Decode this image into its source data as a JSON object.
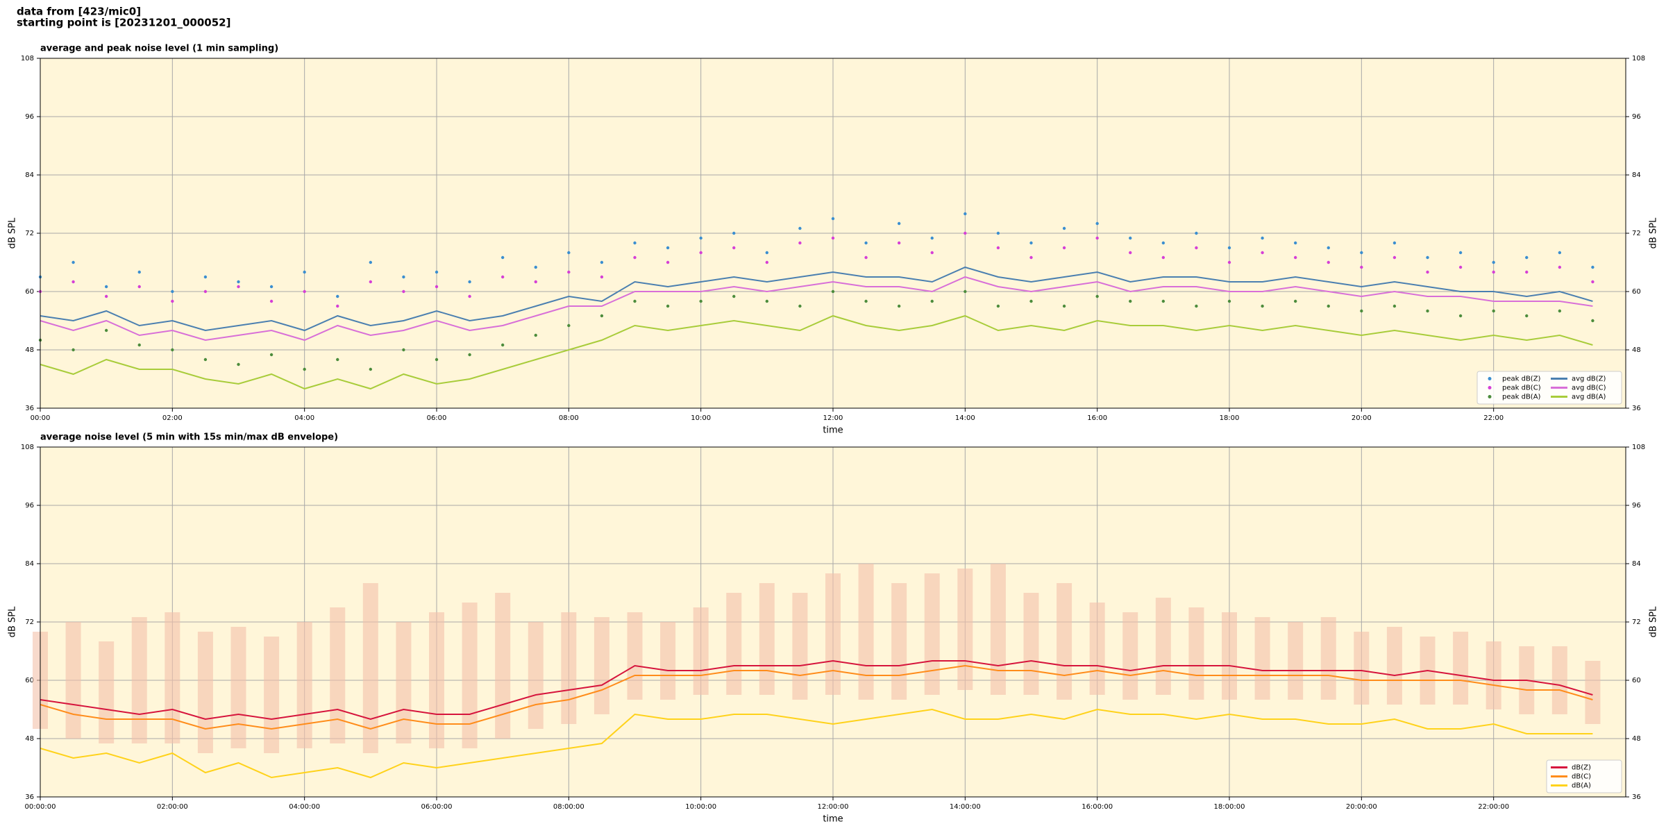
{
  "header": {
    "lines": [
      "data from [423/mic0]",
      "starting point is [20231201_000052]"
    ]
  },
  "chart_data": [
    {
      "type": "line",
      "title": "average and peak noise level (1 min sampling)",
      "xlabel": "time",
      "ylabel": "dB SPL",
      "y2label": "dB SPL",
      "background": "#fff6d9",
      "grid": true,
      "legend_loc": "lower right",
      "x": [
        0,
        0.5,
        1,
        1.5,
        2,
        2.5,
        3,
        3.5,
        4,
        4.5,
        5,
        5.5,
        6,
        6.5,
        7,
        7.5,
        8,
        8.5,
        9,
        9.5,
        10,
        10.5,
        11,
        11.5,
        12,
        12.5,
        13,
        13.5,
        14,
        14.5,
        15,
        15.5,
        16,
        16.5,
        17,
        17.5,
        18,
        18.5,
        19,
        19.5,
        20,
        20.5,
        21,
        21.5,
        22,
        22.5,
        23,
        23.5
      ],
      "xlim": [
        0,
        24
      ],
      "xticks": [
        {
          "value": 0,
          "label": "00:00"
        },
        {
          "value": 2,
          "label": "02:00"
        },
        {
          "value": 4,
          "label": "04:00"
        },
        {
          "value": 6,
          "label": "06:00"
        },
        {
          "value": 8,
          "label": "08:00"
        },
        {
          "value": 10,
          "label": "10:00"
        },
        {
          "value": 12,
          "label": "12:00"
        },
        {
          "value": 14,
          "label": "14:00"
        },
        {
          "value": 16,
          "label": "16:00"
        },
        {
          "value": 18,
          "label": "18:00"
        },
        {
          "value": 20,
          "label": "20:00"
        },
        {
          "value": 22,
          "label": "22:00"
        }
      ],
      "ylim": [
        36,
        108
      ],
      "yticks": [
        36,
        48,
        60,
        72,
        84,
        96,
        108
      ],
      "series": [
        {
          "name": "peak dB(Z)",
          "type": "scatter",
          "color": "#3a8ed0",
          "values": [
            63,
            66,
            61,
            64,
            60,
            63,
            62,
            61,
            64,
            59,
            66,
            63,
            64,
            62,
            67,
            65,
            68,
            66,
            70,
            69,
            71,
            72,
            68,
            73,
            75,
            70,
            74,
            71,
            76,
            72,
            70,
            73,
            74,
            71,
            70,
            72,
            69,
            71,
            70,
            69,
            68,
            70,
            67,
            68,
            66,
            67,
            68,
            65
          ]
        },
        {
          "name": "peak dB(C)",
          "type": "scatter",
          "color": "#d63fd6",
          "values": [
            60,
            62,
            59,
            61,
            58,
            60,
            61,
            58,
            60,
            57,
            62,
            60,
            61,
            59,
            63,
            62,
            64,
            63,
            67,
            66,
            68,
            69,
            66,
            70,
            71,
            67,
            70,
            68,
            72,
            69,
            67,
            69,
            71,
            68,
            67,
            69,
            66,
            68,
            67,
            66,
            65,
            67,
            64,
            65,
            64,
            64,
            65,
            62
          ]
        },
        {
          "name": "peak dB(A)",
          "type": "scatter",
          "color": "#4c8c3c",
          "values": [
            50,
            48,
            52,
            49,
            48,
            46,
            45,
            47,
            44,
            46,
            44,
            48,
            46,
            47,
            49,
            51,
            53,
            55,
            58,
            57,
            58,
            59,
            58,
            57,
            60,
            58,
            57,
            58,
            60,
            57,
            58,
            57,
            59,
            58,
            58,
            57,
            58,
            57,
            58,
            57,
            56,
            57,
            56,
            55,
            56,
            55,
            56,
            54
          ]
        },
        {
          "name": "avg dB(Z)",
          "type": "line",
          "color": "#4a7fb0",
          "values": [
            55,
            54,
            56,
            53,
            54,
            52,
            53,
            54,
            52,
            55,
            53,
            54,
            56,
            54,
            55,
            57,
            59,
            58,
            62,
            61,
            62,
            63,
            62,
            63,
            64,
            63,
            63,
            62,
            65,
            63,
            62,
            63,
            64,
            62,
            63,
            63,
            62,
            62,
            63,
            62,
            61,
            62,
            61,
            60,
            60,
            59,
            60,
            58
          ]
        },
        {
          "name": "avg dB(C)",
          "type": "line",
          "color": "#d86fd8",
          "values": [
            54,
            52,
            54,
            51,
            52,
            50,
            51,
            52,
            50,
            53,
            51,
            52,
            54,
            52,
            53,
            55,
            57,
            57,
            60,
            60,
            60,
            61,
            60,
            61,
            62,
            61,
            61,
            60,
            63,
            61,
            60,
            61,
            62,
            60,
            61,
            61,
            60,
            60,
            61,
            60,
            59,
            60,
            59,
            59,
            58,
            58,
            58,
            57
          ]
        },
        {
          "name": "avg dB(A)",
          "type": "line",
          "color": "#a8cc3a",
          "values": [
            45,
            43,
            46,
            44,
            44,
            42,
            41,
            43,
            40,
            42,
            40,
            43,
            41,
            42,
            44,
            46,
            48,
            50,
            53,
            52,
            53,
            54,
            53,
            52,
            55,
            53,
            52,
            53,
            55,
            52,
            53,
            52,
            54,
            53,
            53,
            52,
            53,
            52,
            53,
            52,
            51,
            52,
            51,
            50,
            51,
            50,
            51,
            49
          ]
        }
      ]
    },
    {
      "type": "line",
      "title": "average noise level (5 min with 15s min/max dB envelope)",
      "xlabel": "time",
      "ylabel": "dB SPL",
      "y2label": "dB SPL",
      "background": "#fff6d9",
      "grid": true,
      "legend_loc": "lower right",
      "x": [
        0,
        0.5,
        1,
        1.5,
        2,
        2.5,
        3,
        3.5,
        4,
        4.5,
        5,
        5.5,
        6,
        6.5,
        7,
        7.5,
        8,
        8.5,
        9,
        9.5,
        10,
        10.5,
        11,
        11.5,
        12,
        12.5,
        13,
        13.5,
        14,
        14.5,
        15,
        15.5,
        16,
        16.5,
        17,
        17.5,
        18,
        18.5,
        19,
        19.5,
        20,
        20.5,
        21,
        21.5,
        22,
        22.5,
        23,
        23.5
      ],
      "xlim": [
        0,
        24
      ],
      "xticks": [
        {
          "value": 0,
          "label": "00:00:00"
        },
        {
          "value": 2,
          "label": "02:00:00"
        },
        {
          "value": 4,
          "label": "04:00:00"
        },
        {
          "value": 6,
          "label": "06:00:00"
        },
        {
          "value": 8,
          "label": "08:00:00"
        },
        {
          "value": 10,
          "label": "10:00:00"
        },
        {
          "value": 12,
          "label": "12:00:00"
        },
        {
          "value": 14,
          "label": "14:00:00"
        },
        {
          "value": 16,
          "label": "16:00:00"
        },
        {
          "value": 18,
          "label": "18:00:00"
        },
        {
          "value": 20,
          "label": "20:00:00"
        },
        {
          "value": 22,
          "label": "22:00:00"
        }
      ],
      "ylim": [
        36,
        108
      ],
      "yticks": [
        36,
        48,
        60,
        72,
        84,
        96,
        108
      ],
      "envelope": {
        "color": "#f4c2aa",
        "lower": [
          50,
          48,
          47,
          47,
          47,
          45,
          46,
          45,
          46,
          47,
          45,
          47,
          46,
          46,
          48,
          50,
          51,
          53,
          56,
          56,
          57,
          57,
          57,
          56,
          57,
          56,
          56,
          57,
          58,
          57,
          57,
          56,
          57,
          56,
          57,
          56,
          56,
          56,
          56,
          56,
          55,
          55,
          55,
          55,
          54,
          53,
          53,
          51
        ],
        "upper": [
          70,
          72,
          68,
          73,
          74,
          70,
          71,
          69,
          72,
          75,
          80,
          72,
          74,
          76,
          78,
          72,
          74,
          73,
          74,
          72,
          75,
          78,
          80,
          78,
          82,
          84,
          80,
          82,
          83,
          84,
          78,
          80,
          76,
          74,
          77,
          75,
          74,
          73,
          72,
          73,
          70,
          71,
          69,
          70,
          68,
          67,
          67,
          64
        ]
      },
      "series": [
        {
          "name": "dB(Z)",
          "type": "line",
          "color": "#d6143c",
          "values": [
            56,
            55,
            54,
            53,
            54,
            52,
            53,
            52,
            53,
            54,
            52,
            54,
            53,
            53,
            55,
            57,
            58,
            59,
            63,
            62,
            62,
            63,
            63,
            63,
            64,
            63,
            63,
            64,
            64,
            63,
            64,
            63,
            63,
            62,
            63,
            63,
            63,
            62,
            62,
            62,
            62,
            61,
            62,
            61,
            60,
            60,
            59,
            57
          ]
        },
        {
          "name": "dB(C)",
          "type": "line",
          "color": "#ff8c1a",
          "values": [
            55,
            53,
            52,
            52,
            52,
            50,
            51,
            50,
            51,
            52,
            50,
            52,
            51,
            51,
            53,
            55,
            56,
            58,
            61,
            61,
            61,
            62,
            62,
            61,
            62,
            61,
            61,
            62,
            63,
            62,
            62,
            61,
            62,
            61,
            62,
            61,
            61,
            61,
            61,
            61,
            60,
            60,
            60,
            60,
            59,
            58,
            58,
            56
          ]
        },
        {
          "name": "dB(A)",
          "type": "line",
          "color": "#ffd21a",
          "values": [
            46,
            44,
            45,
            43,
            45,
            41,
            43,
            40,
            41,
            42,
            40,
            43,
            42,
            43,
            44,
            45,
            46,
            47,
            53,
            52,
            52,
            53,
            53,
            52,
            51,
            52,
            53,
            54,
            52,
            52,
            53,
            52,
            54,
            53,
            53,
            52,
            53,
            52,
            52,
            51,
            51,
            52,
            50,
            50,
            51,
            49,
            49,
            49
          ]
        }
      ]
    }
  ]
}
